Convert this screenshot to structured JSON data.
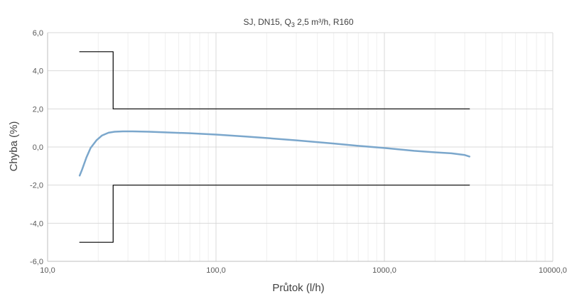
{
  "chart_data": {
    "type": "line",
    "title": {
      "prefix": "SJ, DN15, Q",
      "subscript": "3",
      "suffix": " 2,5 m³/h, R160"
    },
    "xlabel": "Průtok (l/h)",
    "ylabel": "Chyba (%)",
    "xscale": "log",
    "xlim": [
      10,
      10000
    ],
    "ylim": [
      -6,
      6
    ],
    "x_ticks": [
      {
        "value": 10,
        "label": "10,0"
      },
      {
        "value": 100,
        "label": "100,0"
      },
      {
        "value": 1000,
        "label": "1000,0"
      },
      {
        "value": 10000,
        "label": "10000,0"
      }
    ],
    "y_ticks": [
      {
        "value": 6,
        "label": "6,0"
      },
      {
        "value": 4,
        "label": "4,0"
      },
      {
        "value": 2,
        "label": "2,0"
      },
      {
        "value": 0,
        "label": "0,0"
      },
      {
        "value": -2,
        "label": "-2,0"
      },
      {
        "value": -4,
        "label": "-4,0"
      },
      {
        "value": -6,
        "label": "-6,0"
      }
    ],
    "grid": true,
    "legend": "none",
    "series": [
      {
        "color": "#7BA7CC",
        "x": [
          15.5,
          16.0,
          17.0,
          18.0,
          19.5,
          21.0,
          23.0,
          25.0,
          28.0,
          32.0,
          40.0,
          50.0,
          70.0,
          100.0,
          150.0,
          200.0,
          300.0,
          500.0,
          700.0,
          1000.0,
          1500.0,
          2000.0,
          2500.0,
          3000.0,
          3200.0
        ],
        "y": [
          -1.5,
          -1.2,
          -0.55,
          -0.05,
          0.35,
          0.6,
          0.75,
          0.8,
          0.82,
          0.82,
          0.8,
          0.77,
          0.72,
          0.65,
          0.55,
          0.47,
          0.35,
          0.18,
          0.06,
          -0.05,
          -0.2,
          -0.28,
          -0.33,
          -0.42,
          -0.5
        ]
      },
      {
        "color": "#000000",
        "x": [
          15.5,
          24.5,
          24.5,
          3200
        ],
        "y": [
          5.0,
          5.0,
          2.0,
          2.0
        ]
      },
      {
        "color": "#000000",
        "x": [
          15.5,
          24.5,
          24.5,
          3200
        ],
        "y": [
          -5.0,
          -5.0,
          -2.0,
          -2.0
        ]
      }
    ],
    "colors": {
      "major_grid": "#d9d9d9",
      "minor_grid": "#efefef",
      "axis": "#bfbfbf"
    }
  }
}
